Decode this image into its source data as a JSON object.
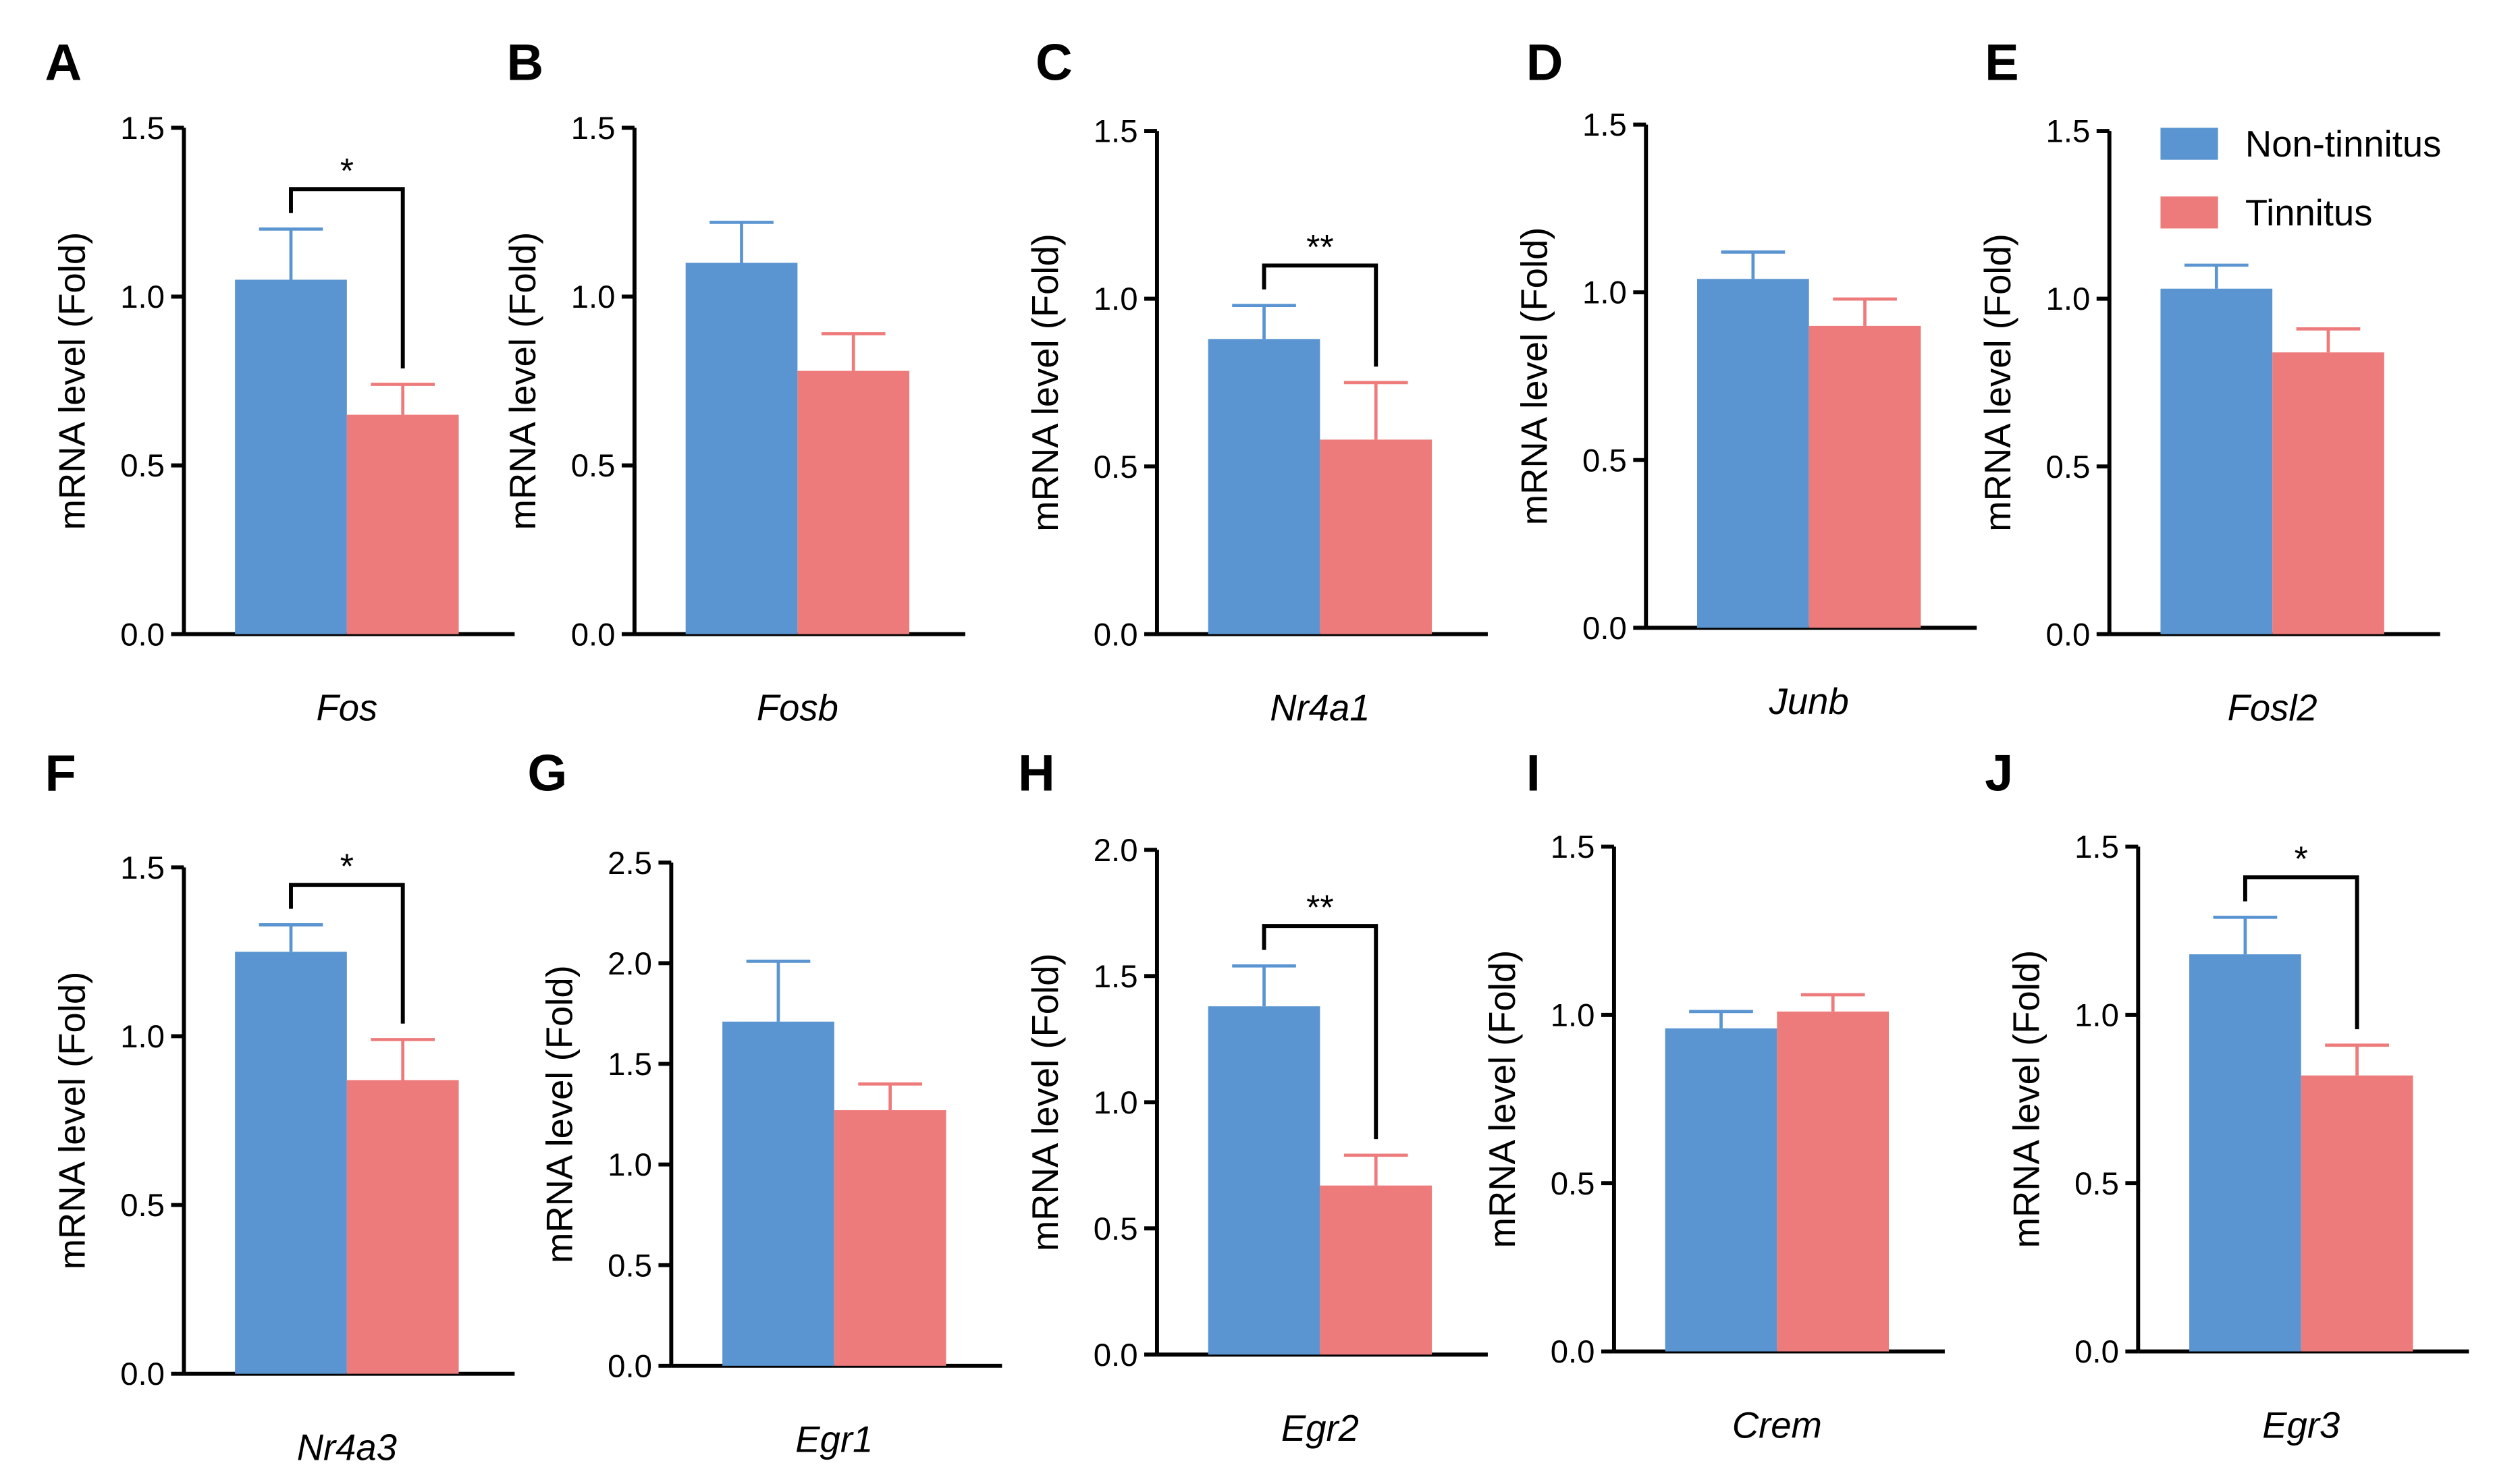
{
  "legend": {
    "items": [
      {
        "label": "Non-tinnitus",
        "color": "#5b95d1"
      },
      {
        "label": "Tinnitus",
        "color": "#ee7b7b"
      }
    ],
    "placement": "top-right"
  },
  "chart_data": [
    {
      "panel": "A",
      "type": "bar",
      "gene": "Fos",
      "ylabel": "mRNA level (Fold)",
      "ylim": [
        0,
        1.5
      ],
      "ticks": [
        "0.0",
        "0.5",
        "1.0",
        "1.5"
      ],
      "series": [
        {
          "name": "Non-tinnitus",
          "value": 1.05,
          "error": 0.15
        },
        {
          "name": "Tinnitus",
          "value": 0.65,
          "error": 0.09
        }
      ],
      "significance": "*"
    },
    {
      "panel": "B",
      "type": "bar",
      "gene": "Fosb",
      "ylabel": "mRNA level (Fold)",
      "ylim": [
        0,
        1.5
      ],
      "ticks": [
        "0.0",
        "0.5",
        "1.0",
        "1.5"
      ],
      "series": [
        {
          "name": "Non-tinnitus",
          "value": 1.1,
          "error": 0.12
        },
        {
          "name": "Tinnitus",
          "value": 0.78,
          "error": 0.11
        }
      ],
      "significance": ""
    },
    {
      "panel": "C",
      "type": "bar",
      "gene": "Nr4a1",
      "ylabel": "mRNA level (Fold)",
      "ylim": [
        0,
        1.5
      ],
      "ticks": [
        "0.0",
        "0.5",
        "1.0",
        "1.5"
      ],
      "series": [
        {
          "name": "Non-tinnitus",
          "value": 0.88,
          "error": 0.1
        },
        {
          "name": "Tinnitus",
          "value": 0.58,
          "error": 0.17
        }
      ],
      "significance": "**"
    },
    {
      "panel": "D",
      "type": "bar",
      "gene": "Junb",
      "ylabel": "mRNA level (Fold)",
      "ylim": [
        0,
        1.5
      ],
      "ticks": [
        "0.0",
        "0.5",
        "1.0",
        "1.5"
      ],
      "series": [
        {
          "name": "Non-tinnitus",
          "value": 1.04,
          "error": 0.08
        },
        {
          "name": "Tinnitus",
          "value": 0.9,
          "error": 0.08
        }
      ],
      "significance": ""
    },
    {
      "panel": "E",
      "type": "bar",
      "gene": "Fosl2",
      "ylabel": "mRNA level (Fold)",
      "ylim": [
        0,
        1.5
      ],
      "ticks": [
        "0.0",
        "0.5",
        "1.0",
        "1.5"
      ],
      "series": [
        {
          "name": "Non-tinnitus",
          "value": 1.03,
          "error": 0.07
        },
        {
          "name": "Tinnitus",
          "value": 0.84,
          "error": 0.07
        }
      ],
      "significance": ""
    },
    {
      "panel": "F",
      "type": "bar",
      "gene": "Nr4a3",
      "ylabel": "mRNA level (Fold)",
      "ylim": [
        0,
        1.5
      ],
      "ticks": [
        "0.0",
        "0.5",
        "1.0",
        "1.5"
      ],
      "series": [
        {
          "name": "Non-tinnitus",
          "value": 1.25,
          "error": 0.08
        },
        {
          "name": "Tinnitus",
          "value": 0.87,
          "error": 0.12
        }
      ],
      "significance": "*"
    },
    {
      "panel": "G",
      "type": "bar",
      "gene": "Egr1",
      "ylabel": "mRNA level (Fold)",
      "ylim": [
        0,
        2.5
      ],
      "ticks": [
        "0.0",
        "0.5",
        "1.0",
        "1.5",
        "2.0",
        "2.5"
      ],
      "series": [
        {
          "name": "Non-tinnitus",
          "value": 1.71,
          "error": 0.3
        },
        {
          "name": "Tinnitus",
          "value": 1.27,
          "error": 0.13
        }
      ],
      "significance": ""
    },
    {
      "panel": "H",
      "type": "bar",
      "gene": "Egr2",
      "ylabel": "mRNA level (Fold)",
      "ylim": [
        0,
        2.0
      ],
      "ticks": [
        "0.0",
        "0.5",
        "1.0",
        "1.5",
        "2.0"
      ],
      "series": [
        {
          "name": "Non-tinnitus",
          "value": 1.38,
          "error": 0.16
        },
        {
          "name": "Tinnitus",
          "value": 0.67,
          "error": 0.12
        }
      ],
      "significance": "**"
    },
    {
      "panel": "I",
      "type": "bar",
      "gene": "Crem",
      "ylabel": "mRNA level (Fold)",
      "ylim": [
        0,
        1.5
      ],
      "ticks": [
        "0.0",
        "0.5",
        "1.0",
        "1.5"
      ],
      "series": [
        {
          "name": "Non-tinnitus",
          "value": 0.96,
          "error": 0.05
        },
        {
          "name": "Tinnitus",
          "value": 1.01,
          "error": 0.05
        }
      ],
      "significance": ""
    },
    {
      "panel": "J",
      "type": "bar",
      "gene": "Egr3",
      "ylabel": "mRNA level (Fold)",
      "ylim": [
        0,
        1.5
      ],
      "ticks": [
        "0.0",
        "0.5",
        "1.0",
        "1.5"
      ],
      "series": [
        {
          "name": "Non-tinnitus",
          "value": 1.18,
          "error": 0.11
        },
        {
          "name": "Tinnitus",
          "value": 0.82,
          "error": 0.09
        }
      ],
      "significance": "*"
    }
  ]
}
